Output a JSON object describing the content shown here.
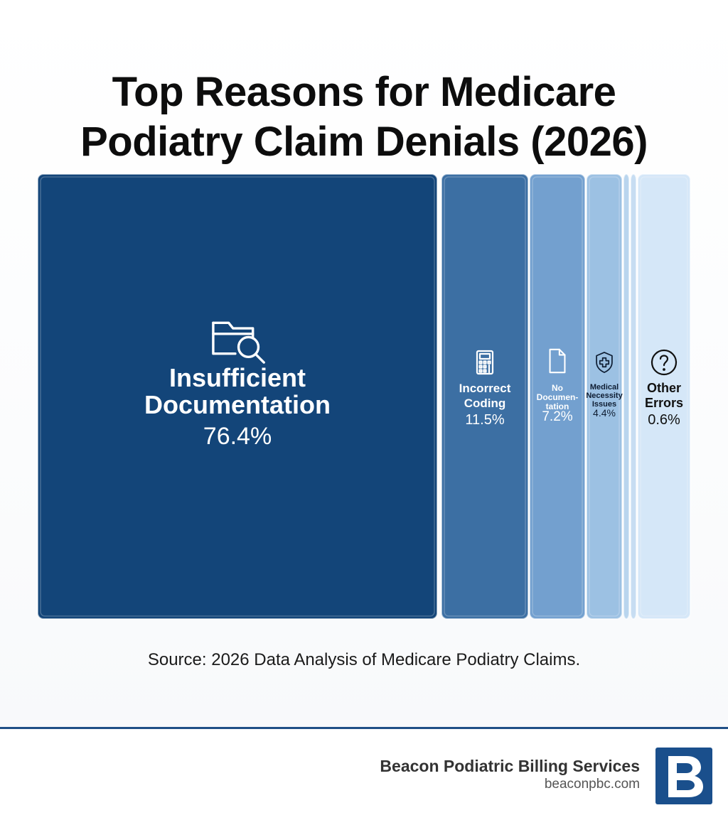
{
  "title": {
    "line1": "Top Reasons for Medicare",
    "line2": "Podiatry Claim Denials (2026)"
  },
  "chart_data": {
    "type": "treemap",
    "title": "Top Reasons for Medicare Podiatry Claim Denials (2026)",
    "unit": "%",
    "categories": [
      {
        "label_lines": [
          "Insufficient",
          "Documentation"
        ],
        "value": 76.4,
        "value_label": "76.4%",
        "icon": "folder-search-icon",
        "color": "#134579",
        "text_color": "#ffffff"
      },
      {
        "label_lines": [
          "Incorrect",
          "Coding"
        ],
        "value": 11.5,
        "value_label": "11.5%",
        "icon": "calculator-icon",
        "color": "#3c6fa3",
        "text_color": "#ffffff"
      },
      {
        "label_lines": [
          "No",
          "Documen-",
          "tation"
        ],
        "value": 7.2,
        "value_label": "7.2%",
        "icon": "document-icon",
        "color": "#73a0cf",
        "text_color": "#ffffff"
      },
      {
        "label_lines": [
          "Medical",
          "Necessity",
          "Issues"
        ],
        "value": 4.4,
        "value_label": "4.4%",
        "icon": "shield-medical-icon",
        "color": "#9cc1e3",
        "text_color": "#0f1e33"
      },
      {
        "label_lines": [],
        "value": null,
        "value_label": "",
        "icon": "",
        "color": "#b9d5ee",
        "text_color": "#0f1e33"
      },
      {
        "label_lines": [],
        "value": null,
        "value_label": "",
        "icon": "",
        "color": "#c7ddf2",
        "text_color": "#0f1e33"
      },
      {
        "label_lines": [
          "Other",
          "Errors"
        ],
        "value": 0.6,
        "value_label": "0.6%",
        "icon": "question-circle-icon",
        "color": "#d5e7f8",
        "text_color": "#111111"
      }
    ]
  },
  "source": "Source: 2026 Data Analysis of Medicare Podiatry Claims.",
  "footer": {
    "brand_name": "Beacon Podiatric Billing Services",
    "brand_url": "beaconpbc.com",
    "logo_letter": "B",
    "accent_color": "#1a4f8c"
  }
}
